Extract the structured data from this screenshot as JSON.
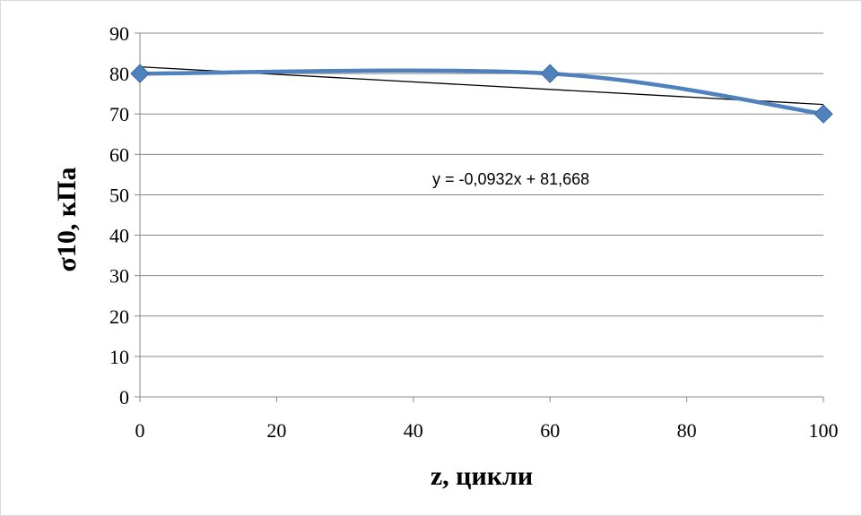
{
  "chart_data": {
    "type": "line",
    "title": "",
    "xlabel": "z, цикли",
    "ylabel": "σ10, кПа",
    "xlim": [
      0,
      100
    ],
    "ylim": [
      0,
      90
    ],
    "xticks": [
      0,
      20,
      40,
      60,
      80,
      100
    ],
    "yticks": [
      0,
      10,
      20,
      30,
      40,
      50,
      60,
      70,
      80,
      90
    ],
    "grid": "horizontal",
    "legend": "none",
    "series": [
      {
        "smooth": true,
        "marker": "diamond",
        "color": "#4f81bd",
        "x": [
          0,
          60,
          100
        ],
        "y": [
          80,
          80,
          70
        ]
      }
    ],
    "trendline": {
      "type": "linear",
      "color": "#000000",
      "slope": -0.0932,
      "intercept": 81.668,
      "equation": "y = -0,0932x + 81,668"
    }
  }
}
